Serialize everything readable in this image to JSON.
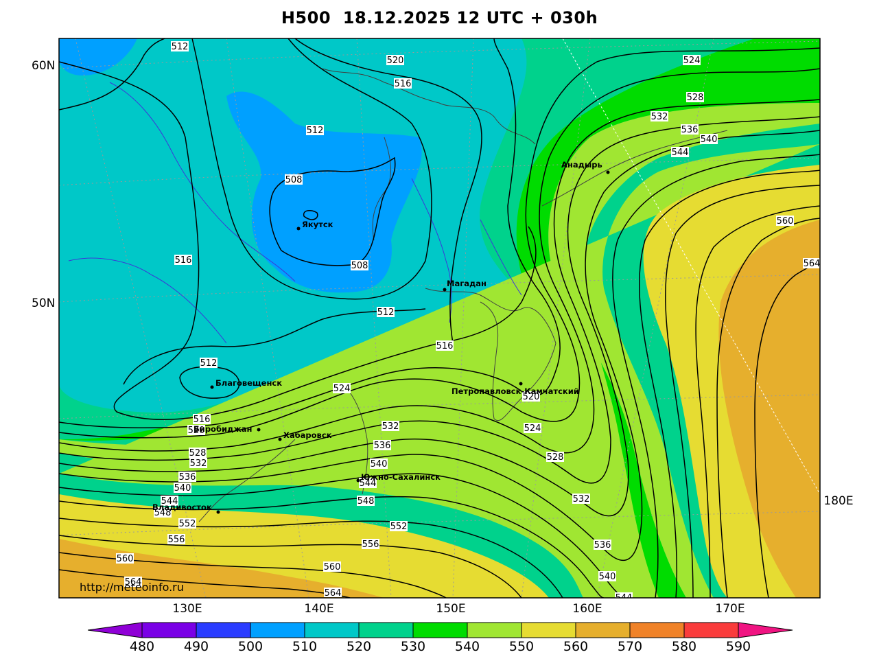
{
  "title": "H500  18.12.2025 12 UTC + 030h",
  "url": "http://meteoinfo.ru",
  "lat_labels": [
    "60N",
    "50N"
  ],
  "lon_labels": [
    "130E",
    "140E",
    "150E",
    "160E",
    "170E",
    "180E"
  ],
  "colorbar": {
    "values": [
      "480",
      "490",
      "500",
      "510",
      "520",
      "530",
      "540",
      "550",
      "560",
      "570",
      "580",
      "590"
    ],
    "colors": [
      "#8f00d6",
      "#7a00e6",
      "#2a3cff",
      "#00a0ff",
      "#00c8c8",
      "#00d28c",
      "#00dc00",
      "#a0e632",
      "#e6dc32",
      "#e6af2d",
      "#f08228",
      "#fa3c3c",
      "#f01482"
    ]
  },
  "contour_labels": [
    "508",
    "512",
    "516",
    "520",
    "524",
    "528",
    "532",
    "536",
    "540",
    "544",
    "548",
    "552",
    "556",
    "560",
    "564"
  ],
  "cities": [
    "Якутск",
    "Магадан",
    "Анадырь",
    "Благовещенск",
    "Биробиджан",
    "Хабаровск",
    "Петропавловск-Камчатский",
    "Южно-Сахалинск",
    "Владивосток"
  ]
}
